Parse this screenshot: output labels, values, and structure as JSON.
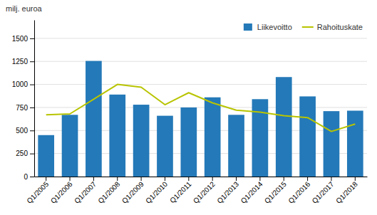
{
  "chart_data": {
    "type": "bar",
    "ylabel": "milj. euroa",
    "categories": [
      "Q1/2005",
      "Q1/2006",
      "Q1/2007",
      "Q1/2008",
      "Q1/2009",
      "Q1/2010",
      "Q1/2011",
      "Q1/2012",
      "Q1/2013",
      "Q1/2014",
      "Q1/2015",
      "Q1/2016",
      "Q1/2017",
      "Q1/2018"
    ],
    "series": [
      {
        "name": "Liikevoitto",
        "type": "bar",
        "color": "#2479b8",
        "values": [
          450,
          670,
          1255,
          890,
          780,
          660,
          750,
          860,
          670,
          840,
          1080,
          870,
          710,
          715
        ]
      },
      {
        "name": "Rahoituskate",
        "type": "line",
        "color": "#b8c400",
        "values": [
          670,
          680,
          840,
          1000,
          970,
          780,
          910,
          800,
          720,
          700,
          660,
          640,
          490,
          570
        ]
      }
    ],
    "ylim": [
      0,
      1700
    ],
    "yticks": [
      0,
      250,
      500,
      750,
      1000,
      1250,
      1500
    ],
    "grid": true,
    "legend": "upper right"
  }
}
